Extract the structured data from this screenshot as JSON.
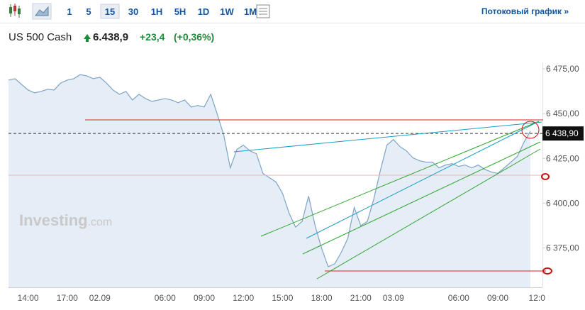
{
  "toolbar": {
    "intervals": [
      "1",
      "5",
      "15",
      "30",
      "1H",
      "5H",
      "1D",
      "1W",
      "1M"
    ],
    "active_interval": 2,
    "link": "Потоковый график »"
  },
  "header": {
    "instrument": "US 500 Cash",
    "price": "6.438,9",
    "change": "+23,4",
    "change_percent": "(+0,36%)"
  },
  "watermark": {
    "brand": "Investing",
    "suffix": ".com"
  },
  "chart_data": {
    "type": "area",
    "color": "#7fa3c6",
    "categories": [
      null,
      null,
      null,
      "14:00",
      null,
      null,
      null,
      null,
      null,
      "17:00",
      null,
      null,
      null,
      null,
      "02.09",
      null,
      null,
      null,
      null,
      null,
      null,
      null,
      null,
      null,
      "06:00",
      null,
      null,
      null,
      null,
      null,
      "09:00",
      null,
      null,
      null,
      null,
      null,
      "12:00",
      null,
      null,
      null,
      null,
      null,
      "15:00",
      null,
      null,
      null,
      null,
      null,
      "18:00",
      null,
      null,
      null,
      null,
      null,
      "21:00",
      null,
      null,
      null,
      null,
      "03.09",
      null,
      null,
      null,
      null,
      null,
      null,
      null,
      null,
      null,
      "06:00",
      null,
      null,
      null,
      null,
      null,
      "09:00",
      null,
      null,
      null,
      null,
      null,
      "12:0"
    ],
    "values": [
      6468.7,
      6469.5,
      6466.3,
      6463.2,
      6461.6,
      6462.4,
      6463.6,
      6463.2,
      6467.1,
      6468.7,
      6469.5,
      6471.8,
      6471.1,
      6469.5,
      6470.3,
      6467.1,
      6463.2,
      6460.8,
      6462.4,
      6457.6,
      6460.8,
      6458.4,
      6456.8,
      6457.6,
      6458.4,
      6457.6,
      6456.1,
      6457.6,
      6453.7,
      6454.5,
      6453.7,
      6460.8,
      6449.7,
      6437.9,
      6419.7,
      6430,
      6432.4,
      6429.2,
      6427.6,
      6416.6,
      6414.2,
      6411.8,
      6405.5,
      6394.5,
      6386.6,
      6389.8,
      6403.9,
      6387.4,
      6374.7,
      6364.5,
      6366.1,
      6372.4,
      6380.3,
      6397.6,
      6387.4,
      6389.8,
      6402.4,
      6418.2,
      6432.4,
      6435.5,
      6431.6,
      6429.2,
      6425.3,
      6423.7,
      6422.9,
      6422.9,
      6419.7,
      6421.3,
      6422.1,
      6420.5,
      6421.3,
      6419.7,
      6421.3,
      6418.9,
      6417.4,
      6416.6,
      6419.7,
      6422.9,
      6426.1,
      6433.9,
      6440.3,
      null
    ],
    "ylim": [
      6353,
      6477
    ],
    "yticks": [
      {
        "value": 6375,
        "label": "6 375,00"
      },
      {
        "value": 6400,
        "label": "6 400,00"
      },
      {
        "value": 6425,
        "label": "6 425,00"
      },
      {
        "value": 6450,
        "label": "6 450,00"
      },
      {
        "value": 6475,
        "label": "6 475,00"
      }
    ],
    "current_price": {
      "value": 6438.9,
      "label": "6 438,90"
    }
  }
}
